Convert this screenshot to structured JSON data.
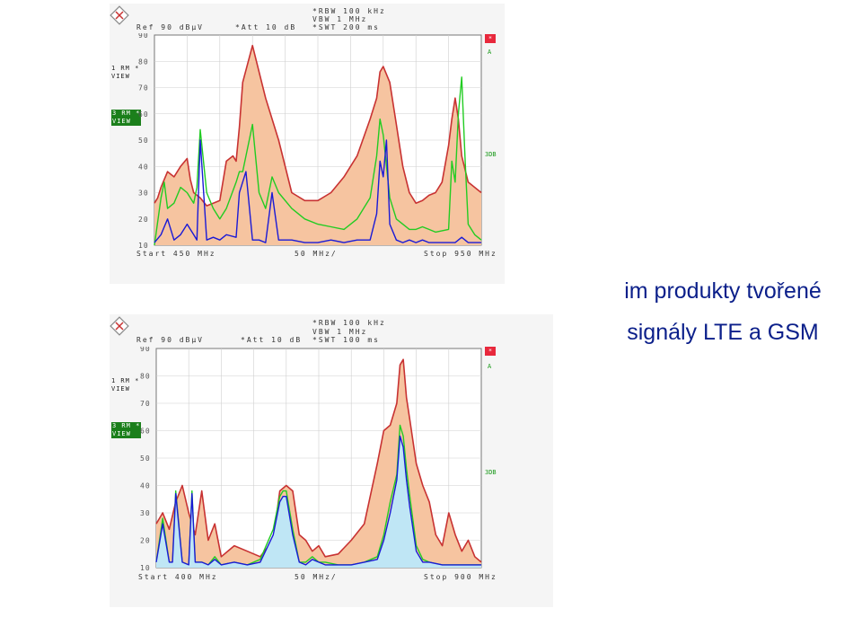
{
  "caption": {
    "line1": "im produkty tvořené",
    "line2": "signály LTE a GSM"
  },
  "panels": [
    {
      "header": {
        "ref": "Ref   90 dBµV",
        "att": "*Att   10 dB",
        "rbw": "*RBW 100 kHz",
        "vbw": " VBW 1 MHz",
        "swt": "*SWT 200 ms"
      },
      "trace1_label": [
        "1 RM *",
        "VIEW"
      ],
      "trace3_label": [
        "3 RM *",
        "VIEW"
      ],
      "marker_star": "*",
      "marker_a": "A",
      "marker_3db": "3DB",
      "footer": {
        "start": "Start 450 MHz",
        "span": "50 MHz/",
        "stop": "Stop 950 MHz"
      },
      "chart_data": {
        "type": "line",
        "ylim": [
          10,
          90
        ],
        "yticks": [
          "90",
          "80",
          "70",
          "60",
          "50",
          "40",
          "30",
          "20",
          "10"
        ],
        "xlim": [
          450,
          950
        ],
        "series": [
          {
            "color": "#c83232",
            "x": [
              450,
              455,
              460,
              470,
              480,
              490,
              500,
              505,
              510,
              520,
              530,
              540,
              550,
              560,
              570,
              575,
              580,
              585,
              600,
              620,
              640,
              660,
              680,
              700,
              720,
              740,
              760,
              780,
              790,
              795,
              800,
              810,
              820,
              830,
              840,
              850,
              860,
              870,
              880,
              890,
              900,
              905,
              910,
              915,
              920,
              930,
              940,
              950
            ],
            "y": [
              26,
              28,
              32,
              38,
              36,
              40,
              43,
              35,
              30,
              28,
              25,
              26,
              27,
              42,
              44,
              42,
              55,
              72,
              86,
              66,
              50,
              30,
              27,
              27,
              30,
              36,
              44,
              58,
              66,
              76,
              78,
              72,
              56,
              40,
              30,
              26,
              27,
              29,
              30,
              34,
              48,
              58,
              66,
              58,
              44,
              34,
              32,
              30
            ]
          },
          {
            "color": "#22cc22",
            "x": [
              450,
              460,
              465,
              470,
              480,
              490,
              500,
              510,
              515,
              520,
              530,
              540,
              550,
              560,
              575,
              580,
              585,
              600,
              610,
              620,
              630,
              640,
              660,
              680,
              700,
              720,
              740,
              760,
              780,
              790,
              795,
              800,
              810,
              820,
              830,
              840,
              850,
              860,
              870,
              880,
              900,
              905,
              910,
              915,
              920,
              925,
              930,
              940,
              950
            ],
            "y": [
              10,
              28,
              34,
              24,
              26,
              32,
              30,
              26,
              32,
              54,
              30,
              24,
              20,
              24,
              34,
              38,
              38,
              56,
              30,
              24,
              36,
              30,
              24,
              20,
              18,
              17,
              16,
              20,
              28,
              44,
              58,
              52,
              28,
              20,
              18,
              16,
              16,
              17,
              16,
              15,
              16,
              42,
              34,
              60,
              74,
              44,
              18,
              14,
              12
            ]
          },
          {
            "color": "#1a1ad6",
            "x": [
              450,
              460,
              470,
              480,
              490,
              500,
              510,
              515,
              520,
              530,
              540,
              550,
              560,
              575,
              580,
              590,
              600,
              610,
              620,
              630,
              640,
              660,
              680,
              700,
              720,
              740,
              760,
              780,
              790,
              795,
              800,
              805,
              810,
              820,
              830,
              840,
              850,
              860,
              870,
              880,
              900,
              910,
              915,
              920,
              930,
              940,
              950
            ],
            "y": [
              11,
              14,
              20,
              12,
              14,
              18,
              14,
              12,
              50,
              12,
              13,
              12,
              14,
              13,
              30,
              38,
              12,
              12,
              11,
              30,
              12,
              12,
              11,
              11,
              12,
              11,
              12,
              12,
              22,
              42,
              36,
              50,
              18,
              12,
              11,
              12,
              11,
              12,
              11,
              11,
              11,
              11,
              12,
              13,
              11,
              11,
              11
            ]
          }
        ]
      }
    },
    {
      "header": {
        "ref": "Ref   90 dBµV",
        "att": "*Att   10 dB",
        "rbw": "*RBW 100 kHz",
        "vbw": " VBW 1 MHz",
        "swt": "*SWT 100 ms"
      },
      "trace1_label": [
        "1 RM *",
        "VIEW"
      ],
      "trace3_label": [
        "3 RM *",
        "VIEW"
      ],
      "marker_star": "*",
      "marker_a": "A",
      "marker_3db": "3DB",
      "footer": {
        "start": "Start 400 MHz",
        "span": "50 MHz/",
        "stop": "Stop 900 MHz"
      },
      "chart_data": {
        "type": "line",
        "ylim": [
          10,
          90
        ],
        "yticks": [
          "90",
          "80",
          "70",
          "60",
          "50",
          "40",
          "30",
          "20",
          "10"
        ],
        "xlim": [
          400,
          900
        ],
        "series": [
          {
            "color": "#c83232",
            "x": [
              400,
              405,
              410,
              420,
              430,
              440,
              450,
              460,
              470,
              480,
              490,
              500,
              520,
              540,
              560,
              580,
              590,
              600,
              610,
              620,
              630,
              640,
              650,
              660,
              680,
              700,
              720,
              740,
              750,
              760,
              770,
              775,
              780,
              785,
              790,
              800,
              810,
              820,
              830,
              840,
              850,
              860,
              870,
              880,
              890,
              900
            ],
            "y": [
              26,
              28,
              30,
              24,
              34,
              40,
              30,
              22,
              38,
              20,
              26,
              14,
              18,
              16,
              14,
              20,
              38,
              40,
              38,
              22,
              20,
              16,
              18,
              14,
              15,
              20,
              26,
              48,
              60,
              62,
              70,
              84,
              86,
              72,
              64,
              48,
              40,
              34,
              22,
              18,
              30,
              22,
              16,
              20,
              14,
              12
            ]
          },
          {
            "color": "#22cc22",
            "x": [
              400,
              410,
              420,
              425,
              430,
              440,
              450,
              455,
              460,
              470,
              480,
              490,
              500,
              520,
              540,
              560,
              580,
              590,
              595,
              600,
              610,
              620,
              630,
              640,
              650,
              660,
              680,
              700,
              720,
              740,
              750,
              760,
              770,
              775,
              780,
              785,
              790,
              800,
              810,
              820,
              840,
              860,
              880,
              900
            ],
            "y": [
              12,
              28,
              12,
              12,
              38,
              12,
              11,
              38,
              12,
              12,
              11,
              14,
              11,
              12,
              11,
              13,
              24,
              36,
              38,
              38,
              24,
              12,
              12,
              14,
              12,
              12,
              11,
              11,
              12,
              14,
              22,
              34,
              44,
              62,
              58,
              46,
              36,
              18,
              13,
              12,
              11,
              11,
              11,
              11
            ]
          },
          {
            "color": "#1a1ad6",
            "x": [
              400,
              410,
              420,
              425,
              430,
              440,
              450,
              455,
              460,
              470,
              480,
              490,
              500,
              520,
              540,
              560,
              580,
              590,
              595,
              600,
              610,
              620,
              630,
              640,
              650,
              660,
              680,
              700,
              720,
              740,
              750,
              760,
              770,
              775,
              780,
              785,
              790,
              800,
              810,
              820,
              840,
              860,
              880,
              900
            ],
            "y": [
              12,
              26,
              12,
              12,
              37,
              12,
              11,
              37,
              12,
              12,
              11,
              13,
              11,
              12,
              11,
              12,
              22,
              34,
              36,
              36,
              22,
              12,
              11,
              13,
              12,
              11,
              11,
              11,
              12,
              13,
              20,
              30,
              42,
              58,
              54,
              42,
              32,
              16,
              12,
              12,
              11,
              11,
              11,
              11
            ]
          }
        ]
      }
    }
  ]
}
